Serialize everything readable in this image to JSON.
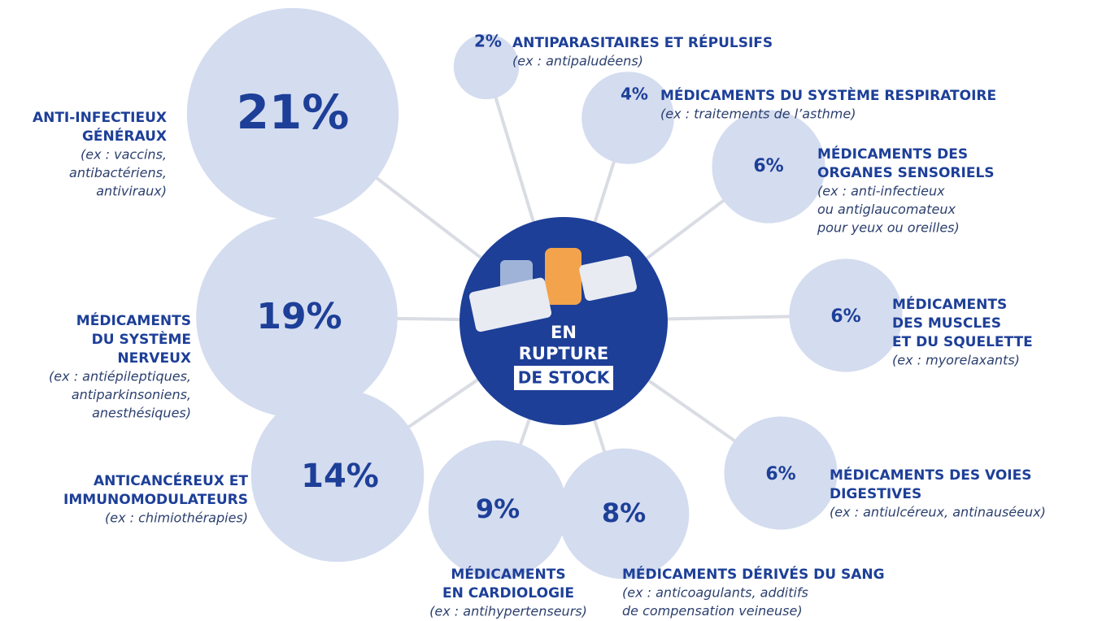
{
  "center": {
    "lines": [
      "EN",
      "RUPTURE"
    ],
    "badge": "DE STOCK"
  },
  "items": [
    {
      "value": 21,
      "value_label": "21%",
      "title": [
        "ANTI-INFECTIEUX",
        "GÉNÉRAUX"
      ],
      "example": [
        "(ex : vaccins,",
        "antibactériens,",
        "antiviraux)"
      ]
    },
    {
      "value": 19,
      "value_label": "19%",
      "title": [
        "MÉDICAMENTS",
        "DU SYSTÈME",
        "NERVEUX"
      ],
      "example": [
        "(ex : antiépileptiques,",
        "antiparkinsoniens,",
        "anesthésiques)"
      ]
    },
    {
      "value": 14,
      "value_label": "14%",
      "title": [
        "ANTICANCÉREUX ET",
        "IMMUNOMODULATEURS"
      ],
      "example": [
        "(ex : chimiothérapies)"
      ]
    },
    {
      "value": 9,
      "value_label": "9%",
      "title": [
        "MÉDICAMENTS",
        "EN CARDIOLOGIE"
      ],
      "example": [
        "(ex : antihypertenseurs)"
      ]
    },
    {
      "value": 8,
      "value_label": "8%",
      "title": [
        "MÉDICAMENTS DÉRIVÉS DU SANG"
      ],
      "example": [
        "(ex : anticoagulants, additifs",
        "de compensation veineuse)"
      ]
    },
    {
      "value": 6,
      "value_label": "6%",
      "title": [
        "MÉDICAMENTS DES VOIES",
        "DIGESTIVES"
      ],
      "example": [
        "(ex : antiulcéreux, antinauséeux)"
      ]
    },
    {
      "value": 6,
      "value_label": "6%",
      "title": [
        "MÉDICAMENTS",
        "DES MUSCLES",
        "ET DU SQUELETTE"
      ],
      "example": [
        "(ex : myorelaxants)"
      ]
    },
    {
      "value": 6,
      "value_label": "6%",
      "title": [
        "MÉDICAMENTS DES",
        "ORGANES SENSORIELS"
      ],
      "example": [
        "(ex : anti-infectieux",
        "ou antiglaucomateux",
        "pour yeux ou oreilles)"
      ]
    },
    {
      "value": 4,
      "value_label": "4%",
      "title": [
        "MÉDICAMENTS DU SYSTÈME RESPIRATOIRE"
      ],
      "example": [
        "(ex : traitements de l’asthme)"
      ]
    },
    {
      "value": 2,
      "value_label": "2%",
      "title": [
        "ANTIPARASITAIRES ET RÉPULSIFS"
      ],
      "example": [
        "(ex : antipaludéens)"
      ]
    }
  ]
}
